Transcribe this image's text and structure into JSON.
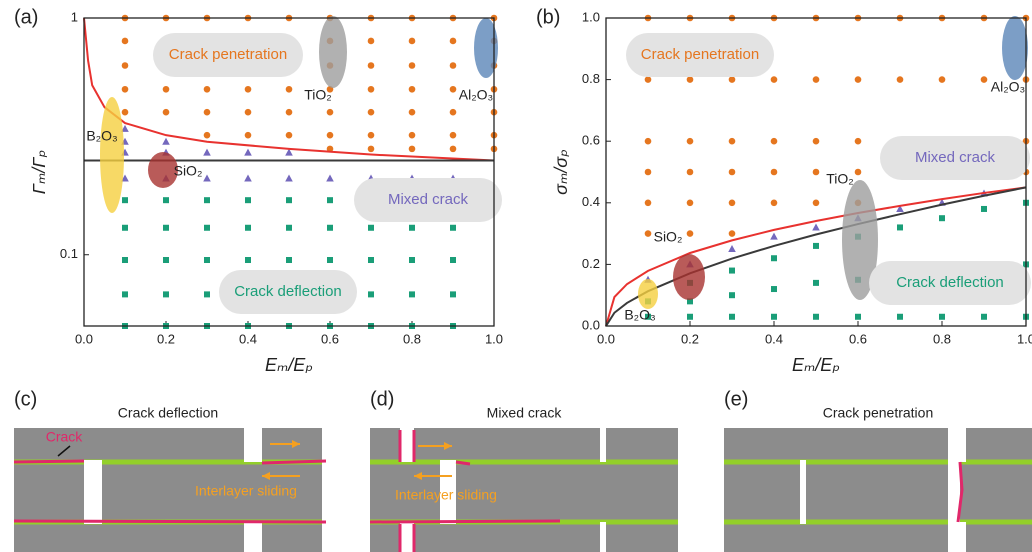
{
  "chart_data": [
    {
      "type": "scatter",
      "panel": "(a)",
      "xlabel": "Eₘ/Eₚ",
      "ylabel": "Γₘ/Γₚ",
      "xlim": [
        0,
        1
      ],
      "xticks": [
        {
          "value": 0,
          "label": "0.0"
        },
        0.2,
        0.4,
        0.6,
        0.8,
        {
          "value": 1,
          "label": "1.0"
        }
      ],
      "ylim": [
        0.05,
        1
      ],
      "yscale": "log",
      "yticks": [
        0.1,
        1
      ],
      "series": [
        {
          "marker": "circle",
          "color": "#e5761f",
          "x": [
            0.1,
            0.1,
            0.1,
            0.1,
            0.1,
            0.2,
            0.2,
            0.2,
            0.2,
            0.2,
            0.3,
            0.3,
            0.3,
            0.3,
            0.3,
            0.3,
            0.4,
            0.4,
            0.4,
            0.4,
            0.4,
            0.4,
            0.5,
            0.5,
            0.5,
            0.5,
            0.5,
            0.5,
            0.6,
            0.6,
            0.6,
            0.6,
            0.6,
            0.6,
            0.6,
            0.7,
            0.7,
            0.7,
            0.7,
            0.7,
            0.7,
            0.7,
            0.8,
            0.8,
            0.8,
            0.8,
            0.8,
            0.8,
            0.8,
            0.9,
            0.9,
            0.9,
            0.9,
            0.9,
            0.9,
            0.9,
            1,
            1,
            1,
            1,
            1,
            1,
            1
          ],
          "values": [
            1,
            0.8,
            0.63,
            0.5,
            0.4,
            1,
            0.8,
            0.63,
            0.5,
            0.4,
            1,
            0.8,
            0.63,
            0.5,
            0.4,
            0.32,
            1,
            0.8,
            0.63,
            0.5,
            0.4,
            0.32,
            1,
            0.8,
            0.63,
            0.5,
            0.4,
            0.32,
            1,
            0.8,
            0.63,
            0.5,
            0.4,
            0.32,
            0.28,
            1,
            0.8,
            0.63,
            0.5,
            0.4,
            0.32,
            0.28,
            1,
            0.8,
            0.63,
            0.5,
            0.4,
            0.32,
            0.28,
            1,
            0.8,
            0.63,
            0.5,
            0.4,
            0.32,
            0.28,
            1,
            0.8,
            0.63,
            0.5,
            0.4,
            0.32,
            0.28
          ]
        },
        {
          "marker": "triangle",
          "color": "#7468bd",
          "x": [
            0.1,
            0.1,
            0.1,
            0.1,
            0.2,
            0.2,
            0.2,
            0.3,
            0.3,
            0.4,
            0.4,
            0.5,
            0.5,
            0.6,
            0.7,
            0.8,
            0.9
          ],
          "values": [
            0.34,
            0.3,
            0.27,
            0.21,
            0.3,
            0.27,
            0.21,
            0.27,
            0.21,
            0.27,
            0.21,
            0.27,
            0.21,
            0.21,
            0.21,
            0.21,
            0.21
          ]
        },
        {
          "marker": "square",
          "color": "#1a9e78",
          "x": [
            0.1,
            0.1,
            0.1,
            0.1,
            0.1,
            0.2,
            0.2,
            0.2,
            0.2,
            0.2,
            0.3,
            0.3,
            0.3,
            0.3,
            0.3,
            0.4,
            0.4,
            0.4,
            0.4,
            0.4,
            0.5,
            0.5,
            0.5,
            0.5,
            0.5,
            0.6,
            0.6,
            0.6,
            0.6,
            0.6,
            0.7,
            0.7,
            0.7,
            0.7,
            0.7,
            0.8,
            0.8,
            0.8,
            0.8,
            0.8,
            0.9,
            0.9,
            0.9,
            0.9,
            0.9
          ],
          "values": [
            0.17,
            0.13,
            0.095,
            0.068,
            0.05,
            0.17,
            0.13,
            0.095,
            0.068,
            0.05,
            0.17,
            0.13,
            0.095,
            0.068,
            0.05,
            0.17,
            0.13,
            0.095,
            0.068,
            0.05,
            0.17,
            0.13,
            0.095,
            0.068,
            0.05,
            0.17,
            0.13,
            0.095,
            0.068,
            0.05,
            0.17,
            0.13,
            0.095,
            0.068,
            0.05,
            0.17,
            0.13,
            0.095,
            0.068,
            0.05,
            0.17,
            0.13,
            0.095,
            0.068,
            0.05
          ]
        }
      ],
      "lines": [
        {
          "color": "#e8322f",
          "x": [
            0,
            0.01,
            0.02,
            0.05,
            0.1,
            0.2,
            0.3,
            0.5,
            0.7,
            1
          ],
          "values": [
            1,
            0.66,
            0.52,
            0.42,
            0.36,
            0.32,
            0.3,
            0.28,
            0.265,
            0.25
          ]
        },
        {
          "color": "#3a3a3a",
          "x": [
            0,
            1
          ],
          "values": [
            0.25,
            0.25
          ]
        }
      ],
      "regions": [
        "Crack penetration",
        "Mixed crack",
        "Crack deflection"
      ],
      "materials": [
        "TiO₂",
        "Al₂O₃",
        "B₂O₃",
        "SiO₂"
      ]
    },
    {
      "type": "scatter",
      "panel": "(b)",
      "xlabel": "Eₘ/Eₚ",
      "ylabel": "σₘ/σₚ",
      "xlim": [
        0,
        1
      ],
      "xticks": [
        {
          "value": 0,
          "label": "0.0"
        },
        0.2,
        0.4,
        0.6,
        0.8,
        {
          "value": 1,
          "label": "1.0"
        }
      ],
      "ylim": [
        0,
        1
      ],
      "yticks": [
        {
          "value": 0,
          "label": "0.0"
        },
        0.2,
        0.4,
        0.6,
        0.8,
        {
          "value": 1,
          "label": "1.0"
        }
      ],
      "series": [
        {
          "marker": "circle",
          "color": "#e5761f",
          "x": [
            0.1,
            0.1,
            0.1,
            0.1,
            0.1,
            0.1,
            0.2,
            0.2,
            0.2,
            0.2,
            0.2,
            0.2,
            0.3,
            0.3,
            0.3,
            0.3,
            0.3,
            0.3,
            0.4,
            0.4,
            0.4,
            0.4,
            0.4,
            0.5,
            0.5,
            0.5,
            0.5,
            0.5,
            0.6,
            0.6,
            0.6,
            0.6,
            0.6,
            0.7,
            0.7,
            0.7,
            0.7,
            0.8,
            0.8,
            0.8,
            0.8,
            0.9,
            0.9,
            0.9,
            0.9,
            1,
            1,
            1,
            1
          ],
          "values": [
            1,
            0.8,
            0.6,
            0.5,
            0.4,
            0.3,
            1,
            0.8,
            0.6,
            0.5,
            0.4,
            0.3,
            1,
            0.8,
            0.6,
            0.5,
            0.4,
            0.3,
            1,
            0.8,
            0.6,
            0.5,
            0.4,
            1,
            0.8,
            0.6,
            0.5,
            0.4,
            1,
            0.8,
            0.6,
            0.5,
            0.4,
            1,
            0.8,
            0.6,
            0.5,
            1,
            0.8,
            0.6,
            0.5,
            1,
            0.8,
            0.6,
            0.5,
            1,
            0.8,
            0.6,
            0.5
          ]
        },
        {
          "marker": "triangle",
          "color": "#7468bd",
          "x": [
            0.1,
            0.2,
            0.3,
            0.4,
            0.5,
            0.6,
            0.7,
            0.8,
            0.9
          ],
          "values": [
            0.15,
            0.2,
            0.25,
            0.29,
            0.32,
            0.35,
            0.38,
            0.4,
            0.43
          ]
        },
        {
          "marker": "square",
          "color": "#1a9e78",
          "x": [
            0.1,
            0.1,
            0.2,
            0.2,
            0.2,
            0.3,
            0.3,
            0.3,
            0.4,
            0.4,
            0.4,
            0.5,
            0.5,
            0.5,
            0.6,
            0.6,
            0.6,
            0.7,
            0.7,
            0.7,
            0.8,
            0.8,
            0.8,
            0.9,
            0.9,
            0.9,
            1,
            1,
            1
          ],
          "values": [
            0.03,
            0.08,
            0.03,
            0.08,
            0.14,
            0.03,
            0.1,
            0.18,
            0.03,
            0.12,
            0.22,
            0.03,
            0.14,
            0.26,
            0.03,
            0.15,
            0.29,
            0.03,
            0.16,
            0.32,
            0.03,
            0.18,
            0.35,
            0.03,
            0.2,
            0.38,
            0.03,
            0.2,
            0.4
          ]
        }
      ],
      "lines": [
        {
          "color": "#e8322f",
          "x": [
            0,
            0.02,
            0.05,
            0.1,
            0.2,
            0.3,
            0.4,
            0.5,
            0.6,
            0.7,
            0.8,
            0.9,
            1
          ],
          "values": [
            0,
            0.094,
            0.136,
            0.179,
            0.237,
            0.278,
            0.312,
            0.341,
            0.367,
            0.39,
            0.412,
            0.432,
            0.45
          ]
        },
        {
          "color": "#3a3a3a",
          "x": [
            0,
            0.02,
            0.05,
            0.1,
            0.2,
            0.3,
            0.4,
            0.5,
            0.6,
            0.7,
            0.8,
            0.9,
            1
          ],
          "values": [
            0,
            0.043,
            0.075,
            0.113,
            0.171,
            0.219,
            0.26,
            0.297,
            0.331,
            0.363,
            0.394,
            0.423,
            0.45
          ]
        }
      ],
      "regions": [
        "Crack penetration",
        "Mixed crack",
        "Crack deflection"
      ],
      "materials": [
        "TiO₂",
        "Al₂O₃",
        "B₂O₃",
        "SiO₂"
      ]
    }
  ],
  "panels": [
    {
      "label": "(c)",
      "title": "Crack deflection",
      "notes": [
        "Crack",
        "Interlayer sliding"
      ]
    },
    {
      "label": "(d)",
      "title": "Mixed crack",
      "notes": [
        "Interlayer sliding"
      ]
    },
    {
      "label": "(e)",
      "title": "Crack penetration",
      "notes": []
    }
  ]
}
